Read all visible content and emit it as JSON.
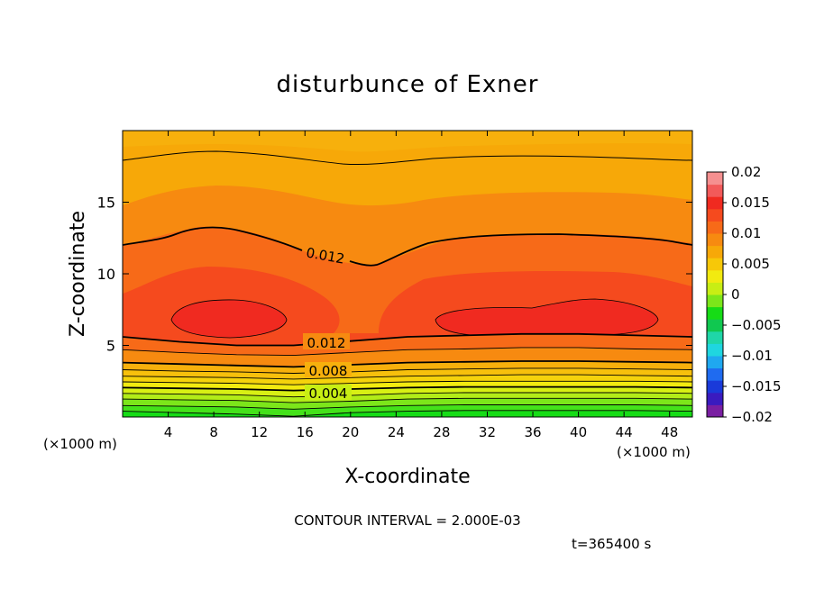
{
  "chart_data": {
    "type": "heatmap",
    "title": "disturbunce of Exner",
    "xlabel": "X-coordinate",
    "ylabel": "Z-coordinate",
    "x_unit": "(×1000 m)",
    "xlim": [
      0,
      50
    ],
    "ylim": [
      0,
      20
    ],
    "x_ticks": [
      4,
      8,
      12,
      16,
      20,
      24,
      28,
      32,
      36,
      40,
      44,
      48
    ],
    "y_ticks": [
      5,
      10,
      15
    ],
    "contour_interval_text": "CONTOUR INTERVAL = 2.000E-03",
    "time_text": "t=365400 s",
    "colorbar": {
      "ticks": [
        "0.02",
        "0.015",
        "0.01",
        "0.005",
        "0",
        "−0.005",
        "−0.01",
        "−0.015",
        "−0.02"
      ],
      "range": [
        -0.02,
        0.02
      ],
      "colors": [
        "#7a1fa2",
        "#3a1bbf",
        "#1a3ad9",
        "#1f6bf0",
        "#1fa8f0",
        "#1fd6e0",
        "#1fd6a8",
        "#10c850",
        "#16dc16",
        "#7ce61a",
        "#c8ee14",
        "#f2ea10",
        "#f7c808",
        "#f7a808",
        "#f78a10",
        "#f76a18",
        "#f54a1e",
        "#f02a20",
        "#f25a5a",
        "#f59090"
      ]
    },
    "contour_labels": [
      {
        "text": "0.012",
        "x": 16.5,
        "z": 11.6
      },
      {
        "text": "0.012",
        "x": 16.5,
        "z": 5.1
      },
      {
        "text": "0.008",
        "x": 17.5,
        "z": 3.1
      },
      {
        "text": "0.004",
        "x": 17.5,
        "z": 1.5
      }
    ],
    "bands": [
      {
        "level": 0.0,
        "color": "#16dc16",
        "z": [
          0.4,
          0.3,
          0.2,
          0.05,
          0.3,
          0.4,
          0.45,
          0.45,
          0.45,
          0.45,
          0.4
        ]
      },
      {
        "level": 0.001,
        "color": "#44e21a",
        "z": [
          0.8,
          0.75,
          0.7,
          0.55,
          0.7,
          0.8,
          0.85,
          0.85,
          0.85,
          0.85,
          0.8
        ]
      },
      {
        "level": 0.002,
        "color": "#7ce61a",
        "z": [
          1.25,
          1.2,
          1.15,
          1.0,
          1.1,
          1.25,
          1.3,
          1.3,
          1.3,
          1.3,
          1.25
        ]
      },
      {
        "level": 0.003,
        "color": "#b2ec18",
        "z": [
          1.65,
          1.6,
          1.55,
          1.4,
          1.5,
          1.65,
          1.7,
          1.7,
          1.7,
          1.7,
          1.65
        ]
      },
      {
        "level": 0.004,
        "color": "#d8f014",
        "z": [
          2.05,
          2.0,
          1.95,
          1.85,
          1.95,
          2.05,
          2.1,
          2.1,
          2.1,
          2.1,
          2.05
        ]
      },
      {
        "level": 0.005,
        "color": "#f2ea10",
        "z": [
          2.45,
          2.4,
          2.35,
          2.25,
          2.35,
          2.45,
          2.5,
          2.5,
          2.5,
          2.5,
          2.45
        ]
      },
      {
        "level": 0.006,
        "color": "#f5d20c",
        "z": [
          2.85,
          2.8,
          2.75,
          2.65,
          2.75,
          2.85,
          2.9,
          2.95,
          2.95,
          2.9,
          2.85
        ]
      },
      {
        "level": 0.007,
        "color": "#f7c00c",
        "z": [
          3.3,
          3.2,
          3.15,
          3.05,
          3.15,
          3.3,
          3.35,
          3.4,
          3.4,
          3.35,
          3.3
        ]
      },
      {
        "level": 0.008,
        "color": "#f7b00c",
        "z": [
          3.8,
          3.7,
          3.6,
          3.5,
          3.65,
          3.8,
          3.85,
          3.9,
          3.9,
          3.85,
          3.8
        ]
      },
      {
        "level": 0.01,
        "color": "#f78a10",
        "z": [
          4.7,
          4.5,
          4.35,
          4.3,
          4.5,
          4.7,
          4.75,
          4.85,
          4.85,
          4.75,
          4.7
        ]
      },
      {
        "level": 0.012,
        "color": "#f76a18",
        "z": [
          5.6,
          5.25,
          5.0,
          5.0,
          5.3,
          5.6,
          5.7,
          5.8,
          5.8,
          5.7,
          5.6
        ]
      }
    ]
  }
}
